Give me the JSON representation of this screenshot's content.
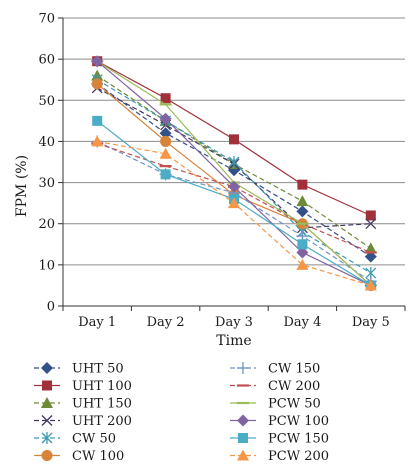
{
  "chart_data": {
    "type": "line",
    "title": "",
    "xlabel": "Time",
    "ylabel": "FPM (%)",
    "ylim": [
      0,
      70
    ],
    "y_ticks": [
      "0",
      "10",
      "20",
      "30",
      "40",
      "50",
      "60",
      "70"
    ],
    "categories": [
      "Day 1",
      "Day 2",
      "Day 3",
      "Day 4",
      "Day 5"
    ],
    "grid": "horizontal",
    "legend_position": "bottom",
    "series": [
      {
        "name": "UHT 50",
        "color": "#33508a",
        "marker": "diamond",
        "dash": "dashed",
        "values": [
          54,
          42,
          33,
          23,
          12
        ]
      },
      {
        "name": "UHT 100",
        "color": "#a0303a",
        "marker": "square",
        "dash": "solid",
        "values": [
          59.5,
          50.5,
          40.5,
          29.5,
          22
        ]
      },
      {
        "name": "UHT 150",
        "color": "#6e8a38",
        "marker": "triangle",
        "dash": "dashed",
        "values": [
          56,
          45,
          34.5,
          25.5,
          14
        ]
      },
      {
        "name": "UHT 200",
        "color": "#44385f",
        "marker": "x",
        "dash": "dashed",
        "values": [
          53,
          44,
          34.5,
          19,
          20
        ]
      },
      {
        "name": "CW 50",
        "color": "#3a9bb3",
        "marker": "asterisk",
        "dash": "dashed",
        "values": [
          55,
          45,
          35,
          18,
          8
        ]
      },
      {
        "name": "CW 100",
        "color": "#d9823a",
        "marker": "circle",
        "dash": "solid",
        "values": [
          54,
          40,
          27,
          20,
          5
        ]
      },
      {
        "name": "CW 150",
        "color": "#6e95c4",
        "marker": "plus",
        "dash": "dashed",
        "values": [
          40,
          32,
          27.5,
          17,
          6
        ]
      },
      {
        "name": "CW 200",
        "color": "#c2504f",
        "marker": "dash",
        "dash": "dashed",
        "values": [
          39.5,
          34,
          29,
          20,
          13
        ]
      },
      {
        "name": "PCW 50",
        "color": "#9bbb59",
        "marker": "dash",
        "dash": "solid",
        "values": [
          59.5,
          49,
          30,
          20,
          5
        ]
      },
      {
        "name": "PCW 100",
        "color": "#8064a2",
        "marker": "diamond",
        "dash": "solid",
        "values": [
          59.5,
          45.5,
          29,
          13,
          5
        ]
      },
      {
        "name": "PCW 150",
        "color": "#4bacc6",
        "marker": "square",
        "dash": "solid",
        "values": [
          45,
          32,
          26,
          15,
          5
        ]
      },
      {
        "name": "PCW 200",
        "color": "#f79646",
        "marker": "triangle",
        "dash": "dashed",
        "values": [
          40,
          37,
          25,
          10,
          5
        ]
      }
    ]
  }
}
